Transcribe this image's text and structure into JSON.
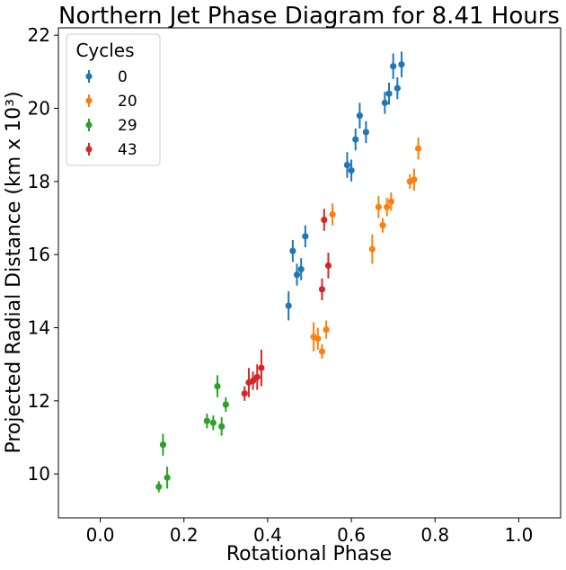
{
  "chart_data": {
    "type": "scatter",
    "title": "Northern Jet Phase Diagram for 8.41 Hours",
    "xlabel": "Rotational Phase",
    "ylabel": "Projected Radial Distance (km x 10³)",
    "xlim": [
      -0.1,
      1.1
    ],
    "ylim": [
      8.8,
      22.2
    ],
    "xticks": [
      0.0,
      0.2,
      0.4,
      0.6,
      0.8,
      1.0
    ],
    "xtick_labels": [
      "0.0",
      "0.2",
      "0.4",
      "0.6",
      "0.8",
      "1.0"
    ],
    "yticks": [
      10,
      12,
      14,
      16,
      18,
      20,
      22
    ],
    "ytick_labels": [
      "10",
      "12",
      "14",
      "16",
      "18",
      "20",
      "22"
    ],
    "grid": false,
    "legend": {
      "title": "Cycles",
      "placement": "top-left"
    },
    "series": [
      {
        "name": "0",
        "color": "#1f77b4",
        "points": [
          {
            "x": 0.45,
            "y": 14.6,
            "err": 0.4
          },
          {
            "x": 0.46,
            "y": 16.1,
            "err": 0.3
          },
          {
            "x": 0.47,
            "y": 15.45,
            "err": 0.3
          },
          {
            "x": 0.48,
            "y": 15.6,
            "err": 0.3
          },
          {
            "x": 0.49,
            "y": 16.5,
            "err": 0.3
          },
          {
            "x": 0.59,
            "y": 18.45,
            "err": 0.35
          },
          {
            "x": 0.6,
            "y": 18.3,
            "err": 0.3
          },
          {
            "x": 0.61,
            "y": 19.15,
            "err": 0.3
          },
          {
            "x": 0.62,
            "y": 19.8,
            "err": 0.35
          },
          {
            "x": 0.635,
            "y": 19.35,
            "err": 0.3
          },
          {
            "x": 0.68,
            "y": 20.15,
            "err": 0.3
          },
          {
            "x": 0.69,
            "y": 20.4,
            "err": 0.3
          },
          {
            "x": 0.7,
            "y": 21.15,
            "err": 0.35
          },
          {
            "x": 0.71,
            "y": 20.55,
            "err": 0.3
          },
          {
            "x": 0.72,
            "y": 21.2,
            "err": 0.35
          }
        ]
      },
      {
        "name": "20",
        "color": "#ff7f0e",
        "points": [
          {
            "x": 0.51,
            "y": 13.75,
            "err": 0.4
          },
          {
            "x": 0.52,
            "y": 13.7,
            "err": 0.3
          },
          {
            "x": 0.53,
            "y": 13.35,
            "err": 0.2
          },
          {
            "x": 0.54,
            "y": 13.95,
            "err": 0.25
          },
          {
            "x": 0.555,
            "y": 17.1,
            "err": 0.3
          },
          {
            "x": 0.65,
            "y": 16.15,
            "err": 0.4
          },
          {
            "x": 0.665,
            "y": 17.3,
            "err": 0.3
          },
          {
            "x": 0.675,
            "y": 16.8,
            "err": 0.2
          },
          {
            "x": 0.685,
            "y": 17.3,
            "err": 0.25
          },
          {
            "x": 0.695,
            "y": 17.45,
            "err": 0.25
          },
          {
            "x": 0.74,
            "y": 18.0,
            "err": 0.2
          },
          {
            "x": 0.75,
            "y": 18.05,
            "err": 0.3
          },
          {
            "x": 0.76,
            "y": 18.9,
            "err": 0.3
          }
        ]
      },
      {
        "name": "29",
        "color": "#2ca02c",
        "points": [
          {
            "x": 0.14,
            "y": 9.65,
            "err": 0.15
          },
          {
            "x": 0.15,
            "y": 10.8,
            "err": 0.3
          },
          {
            "x": 0.16,
            "y": 9.9,
            "err": 0.3
          },
          {
            "x": 0.255,
            "y": 11.45,
            "err": 0.2
          },
          {
            "x": 0.27,
            "y": 11.4,
            "err": 0.2
          },
          {
            "x": 0.28,
            "y": 12.4,
            "err": 0.3
          },
          {
            "x": 0.29,
            "y": 11.3,
            "err": 0.25
          },
          {
            "x": 0.3,
            "y": 11.9,
            "err": 0.2
          }
        ]
      },
      {
        "name": "43",
        "color": "#d62728",
        "points": [
          {
            "x": 0.345,
            "y": 12.2,
            "err": 0.2
          },
          {
            "x": 0.355,
            "y": 12.5,
            "err": 0.4
          },
          {
            "x": 0.365,
            "y": 12.55,
            "err": 0.25
          },
          {
            "x": 0.375,
            "y": 12.65,
            "err": 0.35
          },
          {
            "x": 0.385,
            "y": 12.9,
            "err": 0.5
          },
          {
            "x": 0.53,
            "y": 15.05,
            "err": 0.3
          },
          {
            "x": 0.535,
            "y": 16.95,
            "err": 0.3
          },
          {
            "x": 0.545,
            "y": 15.7,
            "err": 0.35
          }
        ]
      }
    ]
  }
}
